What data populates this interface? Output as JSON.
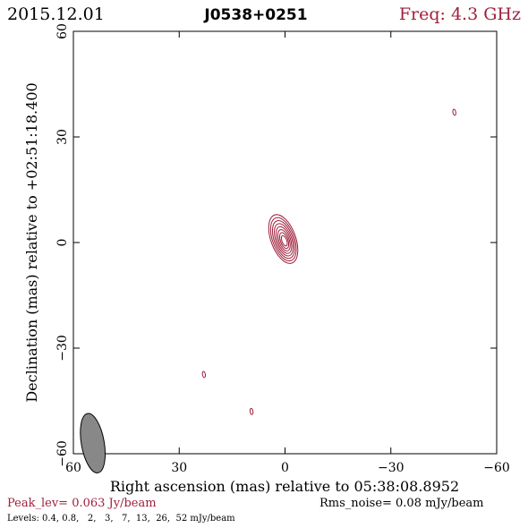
{
  "header": {
    "date": "2015.12.01",
    "source": "J0538+0251",
    "frequency": "Freq: 4.3 GHz"
  },
  "footer": {
    "peak": "Peak_lev=  0.063 Jy/beam",
    "rms": "Rms_noise= 0.08 mJy/beam",
    "levels": "Levels: 0.4, 0.8,   2,   3,   7,  13,  26,  52 mJy/beam"
  },
  "colors": {
    "contour": "#a0203c",
    "accent": "#a0203c",
    "beam_fill": "#888888",
    "axis": "#000000"
  },
  "chart_data": {
    "type": "contour",
    "xlabel": "Right ascension (mas) relative to 05:38:08.8952",
    "ylabel": "Declination (mas) relative to +02:51:18.400",
    "xlim": [
      60,
      -60
    ],
    "ylim": [
      -60,
      60
    ],
    "x_ticks": [
      60,
      30,
      0,
      -30,
      -60
    ],
    "y_ticks": [
      60,
      30,
      0,
      -30,
      -60
    ],
    "x_tick_labels": [
      "60",
      "30",
      "0",
      "−30",
      "−60"
    ],
    "y_tick_labels": [
      "60",
      "30",
      "0",
      "−30",
      "−60"
    ],
    "levels_mjy": [
      0.4,
      0.8,
      2,
      3,
      7,
      13,
      26,
      52
    ],
    "core": {
      "x": 0.5,
      "y": 1.0,
      "peak_jy": 0.063,
      "pa_deg": 20,
      "extent_x": [
        -3.5,
        3.5
      ],
      "extent_y": [
        -7,
        7.5
      ]
    },
    "minor_components": [
      {
        "x": -48,
        "y": 37,
        "level_mjy": 0.4
      },
      {
        "x": 23,
        "y": -37.5,
        "level_mjy": 0.4
      },
      {
        "x": 9.5,
        "y": -48,
        "level_mjy": 0.4
      }
    ],
    "beam": {
      "x": 54.5,
      "y": -57,
      "major_mas": 4.5,
      "minor_mas": 1.8,
      "pa_deg": 10
    }
  }
}
